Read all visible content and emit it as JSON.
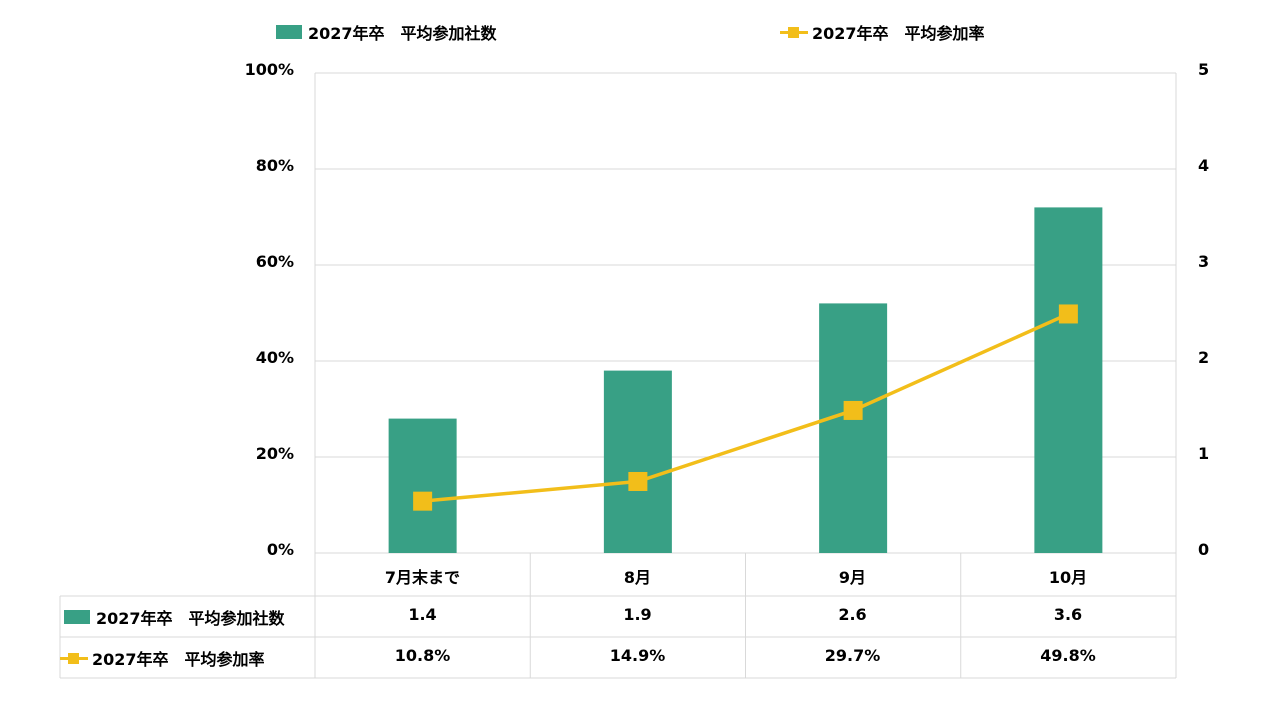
{
  "colors": {
    "bar": "#38a085",
    "line": "#f2be1a",
    "grid": "#d9d9d9"
  },
  "legend": {
    "bar_label": "2027年卒　平均参加社数",
    "line_label": "2027年卒　平均参加率"
  },
  "chart_data": {
    "type": "bar+line",
    "categories": [
      "7月末まで",
      "8月",
      "9月",
      "10月"
    ],
    "series": [
      {
        "name": "2027年卒　平均参加社数",
        "type": "bar",
        "axis": "right",
        "values": [
          1.4,
          1.9,
          2.6,
          3.6
        ]
      },
      {
        "name": "2027年卒　平均参加率",
        "type": "line",
        "axis": "left",
        "values": [
          10.8,
          14.9,
          29.7,
          49.8
        ]
      }
    ],
    "left_axis": {
      "ticks": [
        "0%",
        "20%",
        "40%",
        "60%",
        "80%",
        "100%"
      ],
      "ylim": [
        0,
        100
      ]
    },
    "right_axis": {
      "ticks": [
        "0",
        "1",
        "2",
        "3",
        "4",
        "5"
      ],
      "ylim": [
        0,
        5
      ]
    },
    "grid": true,
    "legend_position": "top"
  },
  "table": {
    "rows": [
      {
        "label": "2027年卒　平均参加社数",
        "cells": [
          "1.4",
          "1.9",
          "2.6",
          "3.6"
        ]
      },
      {
        "label": "2027年卒　平均参加率",
        "cells": [
          "10.8%",
          "14.9%",
          "29.7%",
          "49.8%"
        ]
      }
    ]
  }
}
